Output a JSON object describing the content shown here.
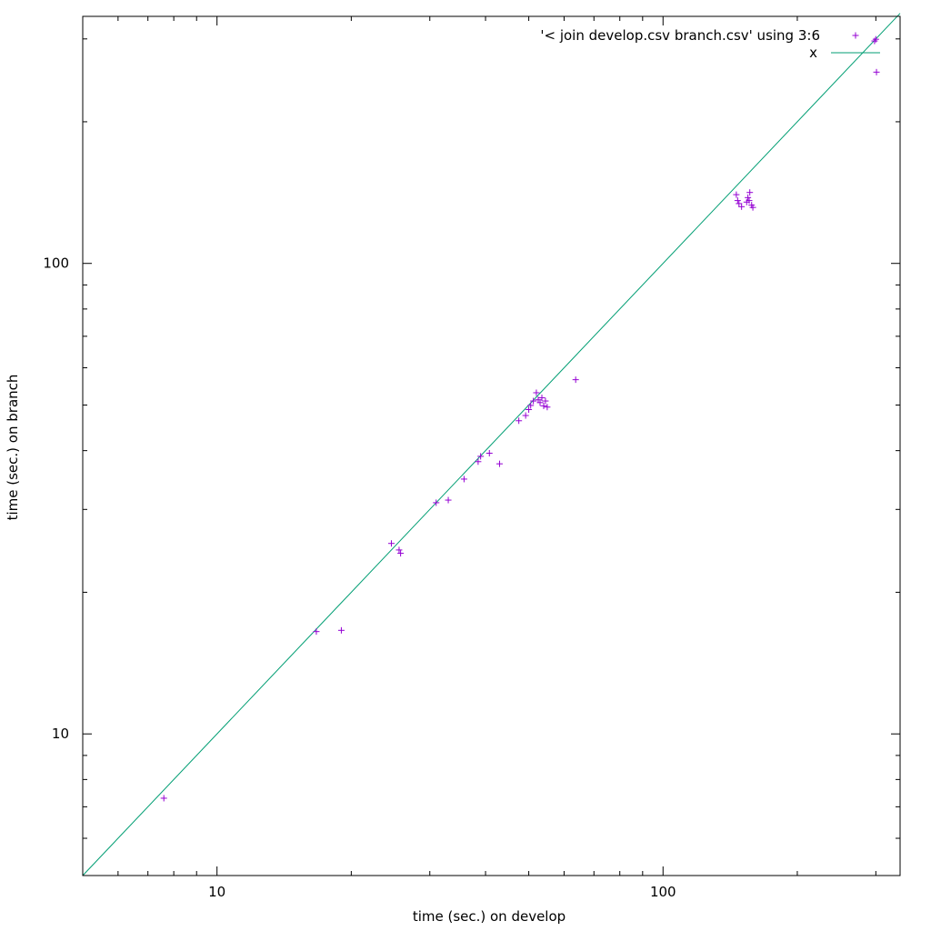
{
  "chart_data": {
    "type": "scatter",
    "xlabel": "time (sec.) on develop",
    "ylabel": "time (sec.) on branch",
    "x_scale": "log",
    "y_scale": "log",
    "xlim": [
      5,
      340
    ],
    "ylim": [
      5,
      335
    ],
    "x_ticks": [
      {
        "value": 10,
        "label": "10"
      },
      {
        "value": 100,
        "label": "100"
      }
    ],
    "y_ticks": [
      {
        "value": 10,
        "label": "10"
      },
      {
        "value": 100,
        "label": "100"
      }
    ],
    "grid": false,
    "legend_position": "top-right",
    "colors": {
      "scatter": "#9400d3",
      "line": "#009e73"
    },
    "series": [
      {
        "name": "'< join develop.csv branch.csv' using 3:6",
        "kind": "points",
        "points": [
          [
            7.6,
            7.3
          ],
          [
            16.7,
            16.5
          ],
          [
            19.0,
            16.6
          ],
          [
            24.6,
            25.4
          ],
          [
            25.6,
            24.6
          ],
          [
            25.8,
            24.2
          ],
          [
            31.0,
            31.0
          ],
          [
            33.0,
            31.4
          ],
          [
            35.8,
            34.8
          ],
          [
            38.5,
            37.9
          ],
          [
            39.0,
            38.9
          ],
          [
            40.8,
            39.5
          ],
          [
            43.0,
            37.5
          ],
          [
            47.5,
            46.3
          ],
          [
            49.2,
            47.5
          ],
          [
            50.0,
            48.9
          ],
          [
            50.5,
            49.9
          ],
          [
            51.2,
            51.0
          ],
          [
            52.5,
            51.3
          ],
          [
            52.0,
            53.1
          ],
          [
            53.0,
            50.6
          ],
          [
            53.5,
            51.8
          ],
          [
            54.0,
            49.8
          ],
          [
            54.5,
            51.0
          ],
          [
            55.0,
            49.5
          ],
          [
            63.7,
            56.6
          ],
          [
            146.0,
            140.0
          ],
          [
            147.0,
            136.0
          ],
          [
            148.0,
            134.0
          ],
          [
            150.0,
            132.0
          ],
          [
            154.0,
            135.0
          ],
          [
            155.0,
            138.0
          ],
          [
            156.0,
            136.0
          ],
          [
            156.5,
            141.5
          ],
          [
            158.0,
            133.0
          ],
          [
            159.0,
            131.5
          ],
          [
            298.0,
            297.0
          ],
          [
            300.0,
            299.5
          ],
          [
            301.0,
            255.0
          ]
        ]
      },
      {
        "name": "x",
        "kind": "line",
        "points": [
          [
            5,
            5
          ],
          [
            340,
            340
          ]
        ]
      }
    ]
  }
}
